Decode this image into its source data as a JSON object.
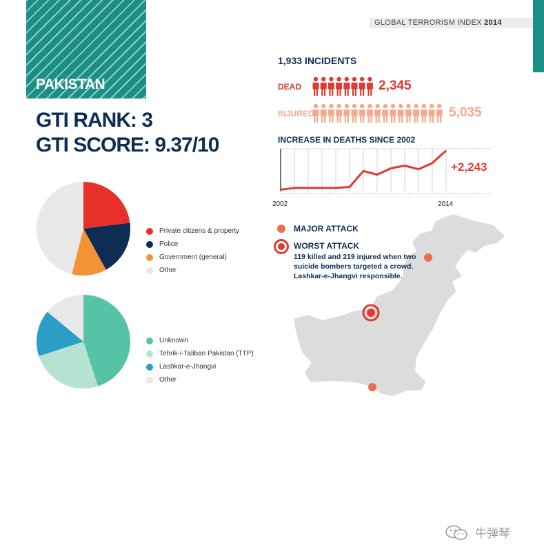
{
  "header": {
    "country": "PAKISTAN",
    "report_title_prefix": "GLOBAL TERRORISM INDEX",
    "report_year": "2014"
  },
  "scores": {
    "rank_text": "GTI RANK: 3",
    "score_text": "GTI SCORE: 9.37/10"
  },
  "stats": {
    "incidents_text": "1,933 INCIDENTS",
    "dead_label": "DEAD",
    "dead_value": "2,345",
    "dead_icon_count": 8,
    "injured_label": "INJURED",
    "injured_value": "5,035",
    "injured_icon_count": 17
  },
  "colors": {
    "teal": "#1a8f86",
    "navy": "#0d2d55",
    "red": "#e03a32",
    "salmon": "#f4a98e",
    "orange": "#f39237"
  },
  "chart_data": [
    {
      "type": "pie",
      "legend_position": "right",
      "labels": [
        "Private citizens & property",
        "Police",
        "Government (general)",
        "Other"
      ],
      "values": [
        23,
        19,
        12,
        46
      ],
      "colors": [
        "#e8302a",
        "#0d2d55",
        "#f39237",
        "#e8e8e8"
      ]
    },
    {
      "type": "pie",
      "legend_position": "right",
      "labels": [
        "Unknown",
        "Tehrik-i-Taliban Pakistan (TTP)",
        "Lashkar-e-Jhangvi",
        "Other"
      ],
      "values": [
        45,
        25,
        16,
        14
      ],
      "colors": [
        "#56c3a6",
        "#b6e2d2",
        "#2a9ec4",
        "#e8e8e8"
      ]
    },
    {
      "type": "line",
      "title": "INCREASE IN DEATHS SINCE 2002",
      "x": [
        2002,
        2003,
        2004,
        2005,
        2006,
        2007,
        2008,
        2009,
        2010,
        2011,
        2012,
        2013,
        2014
      ],
      "values": [
        10,
        20,
        20,
        20,
        20,
        25,
        115,
        95,
        130,
        145,
        125,
        160,
        230
      ],
      "x_tick_labels": [
        "2002",
        "2014"
      ],
      "annotation": "+2,243",
      "ylim": [
        0,
        240
      ],
      "grid": "vertical",
      "line_color": "#e03a32"
    }
  ],
  "map": {
    "major_attack_label": "MAJOR ATTACK",
    "worst_attack_label": "WORST ATTACK",
    "worst_attack_desc": "119 killed and 219 injured when two suicide bombers targeted a crowd. Lashkar-e-Jhangvi responsible.",
    "land_color": "#dcdcdc",
    "marker_color": "#ee6a52"
  },
  "watermark": {
    "text": "牛弹琴"
  }
}
